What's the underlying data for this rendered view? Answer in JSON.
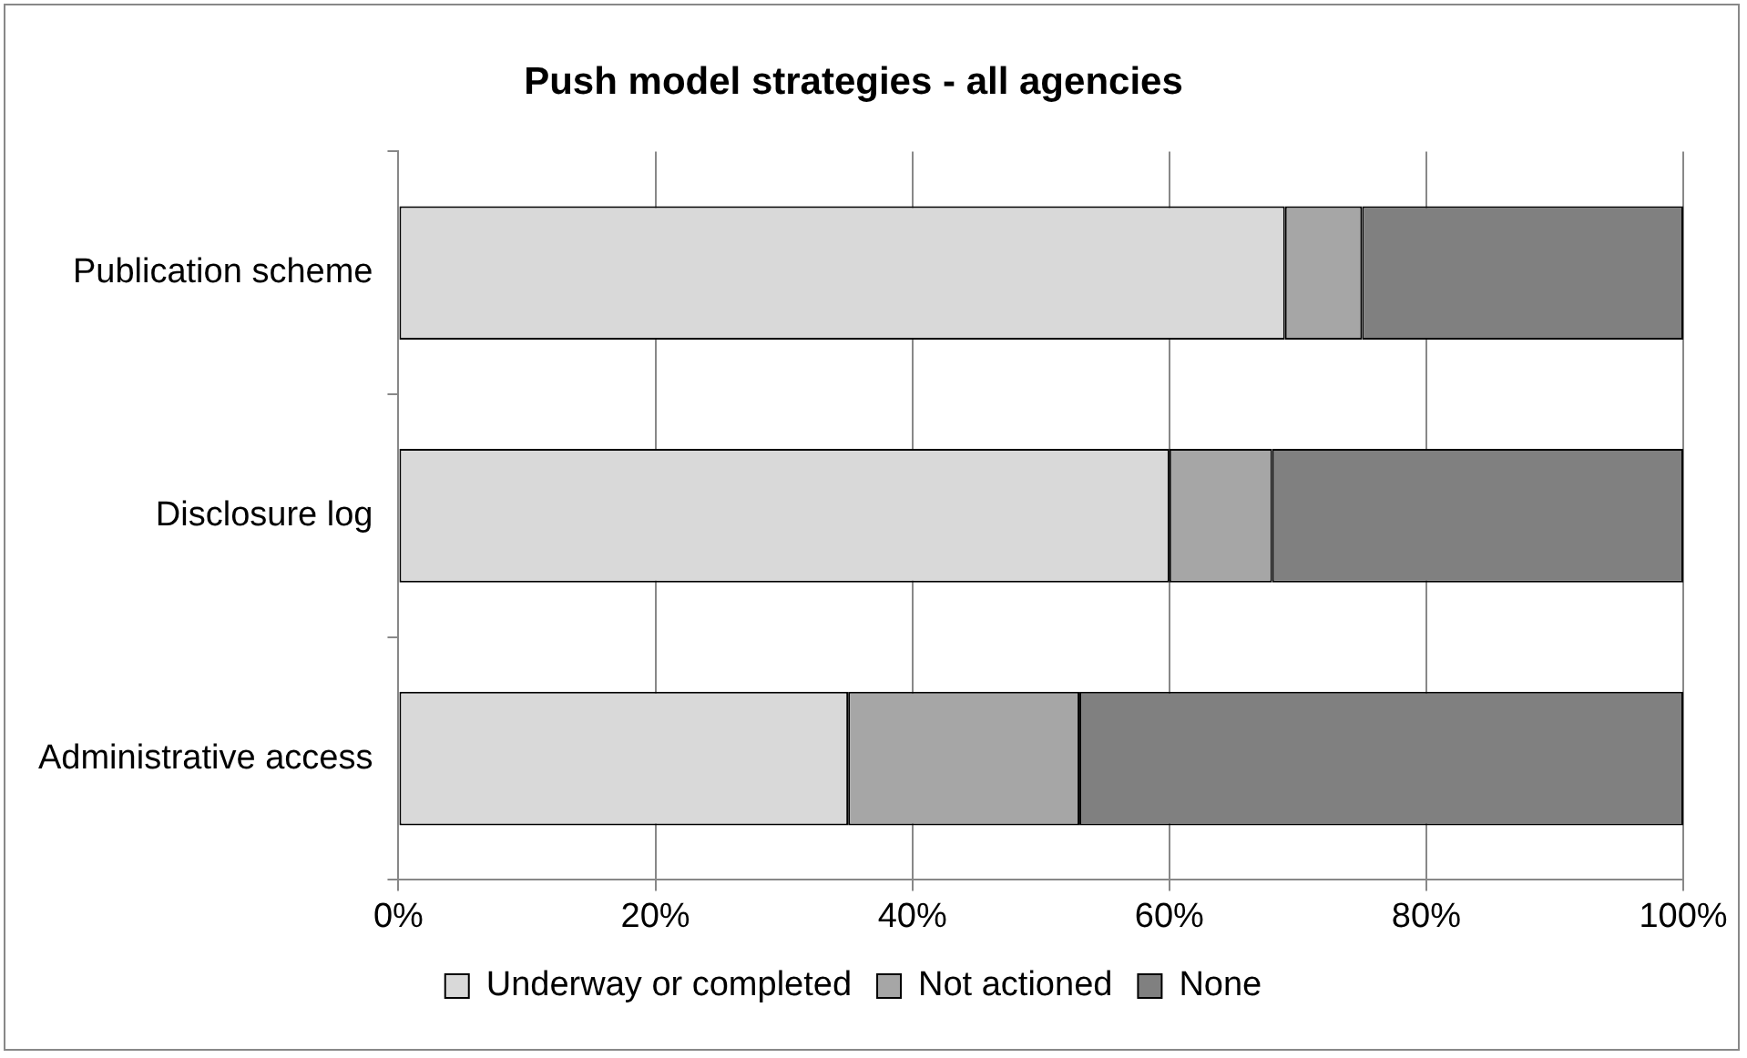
{
  "chart_data": {
    "type": "bar",
    "orientation": "horizontal",
    "stacked": true,
    "title": "Push model strategies - all agencies",
    "categories": [
      "Publication scheme",
      "Disclosure log",
      "Administrative access"
    ],
    "series": [
      {
        "name": "Underway or completed",
        "color": "#d9d9d9",
        "values": [
          69,
          60,
          35
        ]
      },
      {
        "name": "Not actioned",
        "color": "#a6a6a6",
        "values": [
          6,
          8,
          18
        ]
      },
      {
        "name": "None",
        "color": "#808080",
        "values": [
          25,
          32,
          47
        ]
      }
    ],
    "xlim": [
      0,
      100
    ],
    "xticks": [
      {
        "value": 0,
        "label": "0%"
      },
      {
        "value": 20,
        "label": "20%"
      },
      {
        "value": 40,
        "label": "40%"
      },
      {
        "value": 60,
        "label": "60%"
      },
      {
        "value": 80,
        "label": "80%"
      },
      {
        "value": 100,
        "label": "100%"
      }
    ],
    "grid": "x",
    "legend": "bottom"
  }
}
